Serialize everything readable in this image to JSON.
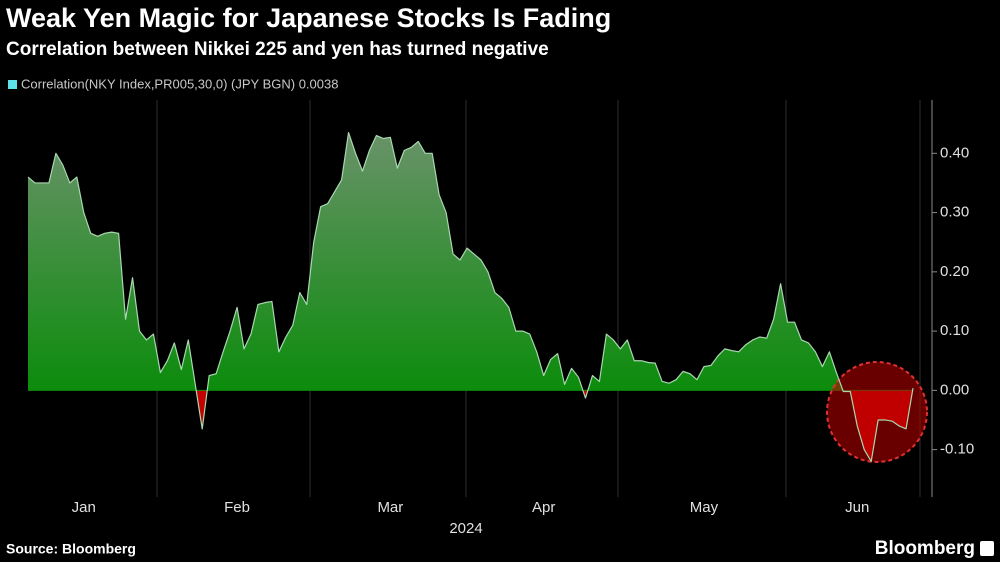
{
  "chart_data": {
    "type": "area",
    "title": "Weak Yen Magic for Japanese Stocks Is Fading",
    "subtitle": "Correlation between Nikkei 225 and yen has turned negative",
    "x_label": "2024",
    "source": "Source: Bloomberg",
    "logo": "Bloomberg",
    "categories": [
      null,
      null,
      null,
      null,
      null,
      null,
      null,
      null,
      "Jan",
      null,
      null,
      null,
      null,
      null,
      null,
      null,
      null,
      null,
      null,
      null,
      null,
      null,
      null,
      null,
      null,
      null,
      null,
      null,
      null,
      null,
      "Feb",
      null,
      null,
      null,
      null,
      null,
      null,
      null,
      null,
      null,
      null,
      null,
      null,
      null,
      null,
      null,
      null,
      null,
      null,
      null,
      null,
      null,
      "Mar",
      null,
      null,
      null,
      null,
      null,
      null,
      null,
      null,
      null,
      null,
      null,
      null,
      null,
      null,
      null,
      null,
      null,
      null,
      null,
      null,
      null,
      "Apr",
      null,
      null,
      null,
      null,
      null,
      null,
      null,
      null,
      null,
      null,
      null,
      null,
      null,
      null,
      null,
      null,
      null,
      null,
      null,
      null,
      null,
      null,
      "May",
      null,
      null,
      null,
      null,
      null,
      null,
      null,
      null,
      null,
      null,
      null,
      null,
      null,
      null,
      null,
      null,
      null,
      null,
      null,
      null,
      null,
      "Jun",
      null,
      null,
      null,
      null,
      null,
      null,
      null,
      null
    ],
    "series": [
      {
        "name": "Correlation(NKY Index,PR005,30,0) (JPY BGN) 0.0038",
        "color": "#5ee0e8",
        "fill_positive": "#0c8c0c",
        "fill_negative": "#c40000",
        "values": [
          0.36,
          0.35,
          0.35,
          0.35,
          0.4,
          0.38,
          0.35,
          0.36,
          0.3,
          0.265,
          0.26,
          0.265,
          0.267,
          0.265,
          0.12,
          0.19,
          0.1,
          0.085,
          0.095,
          0.03,
          0.05,
          0.08,
          0.035,
          0.085,
          0.01,
          -0.065,
          0.025,
          0.028,
          0.065,
          0.1,
          0.14,
          0.07,
          0.095,
          0.145,
          0.148,
          0.15,
          0.065,
          0.09,
          0.11,
          0.165,
          0.145,
          0.25,
          0.31,
          0.315,
          0.335,
          0.355,
          0.435,
          0.4,
          0.37,
          0.405,
          0.43,
          0.425,
          0.427,
          0.375,
          0.405,
          0.41,
          0.42,
          0.4,
          0.4,
          0.33,
          0.3,
          0.23,
          0.22,
          0.24,
          0.23,
          0.22,
          0.2,
          0.165,
          0.155,
          0.14,
          0.1,
          0.1,
          0.095,
          0.065,
          0.025,
          0.052,
          0.062,
          0.01,
          0.037,
          0.022,
          -0.013,
          0.025,
          0.015,
          0.095,
          0.085,
          0.07,
          0.085,
          0.05,
          0.05,
          0.047,
          0.046,
          0.015,
          0.012,
          0.018,
          0.032,
          0.028,
          0.018,
          0.04,
          0.042,
          0.058,
          0.07,
          0.067,
          0.065,
          0.077,
          0.085,
          0.09,
          0.088,
          0.12,
          0.18,
          0.115,
          0.115,
          0.085,
          0.08,
          0.065,
          0.04,
          0.065,
          0.03,
          -0.002,
          -0.002,
          -0.06,
          -0.1,
          -0.12,
          -0.05,
          -0.05,
          -0.052,
          -0.06,
          -0.065,
          0.0038
        ]
      }
    ],
    "ylim": [
      -0.18,
      0.49
    ],
    "yticks": [
      {
        "value": -0.1,
        "label": "-0.10"
      },
      {
        "value": 0,
        "label": "0.00"
      },
      {
        "value": 0.1,
        "label": "0.10"
      },
      {
        "value": 0.2,
        "label": "0.20"
      },
      {
        "value": 0.3,
        "label": "0.30"
      },
      {
        "value": 0.4,
        "label": "0.40"
      }
    ],
    "grid": false,
    "legend": "top-left"
  }
}
